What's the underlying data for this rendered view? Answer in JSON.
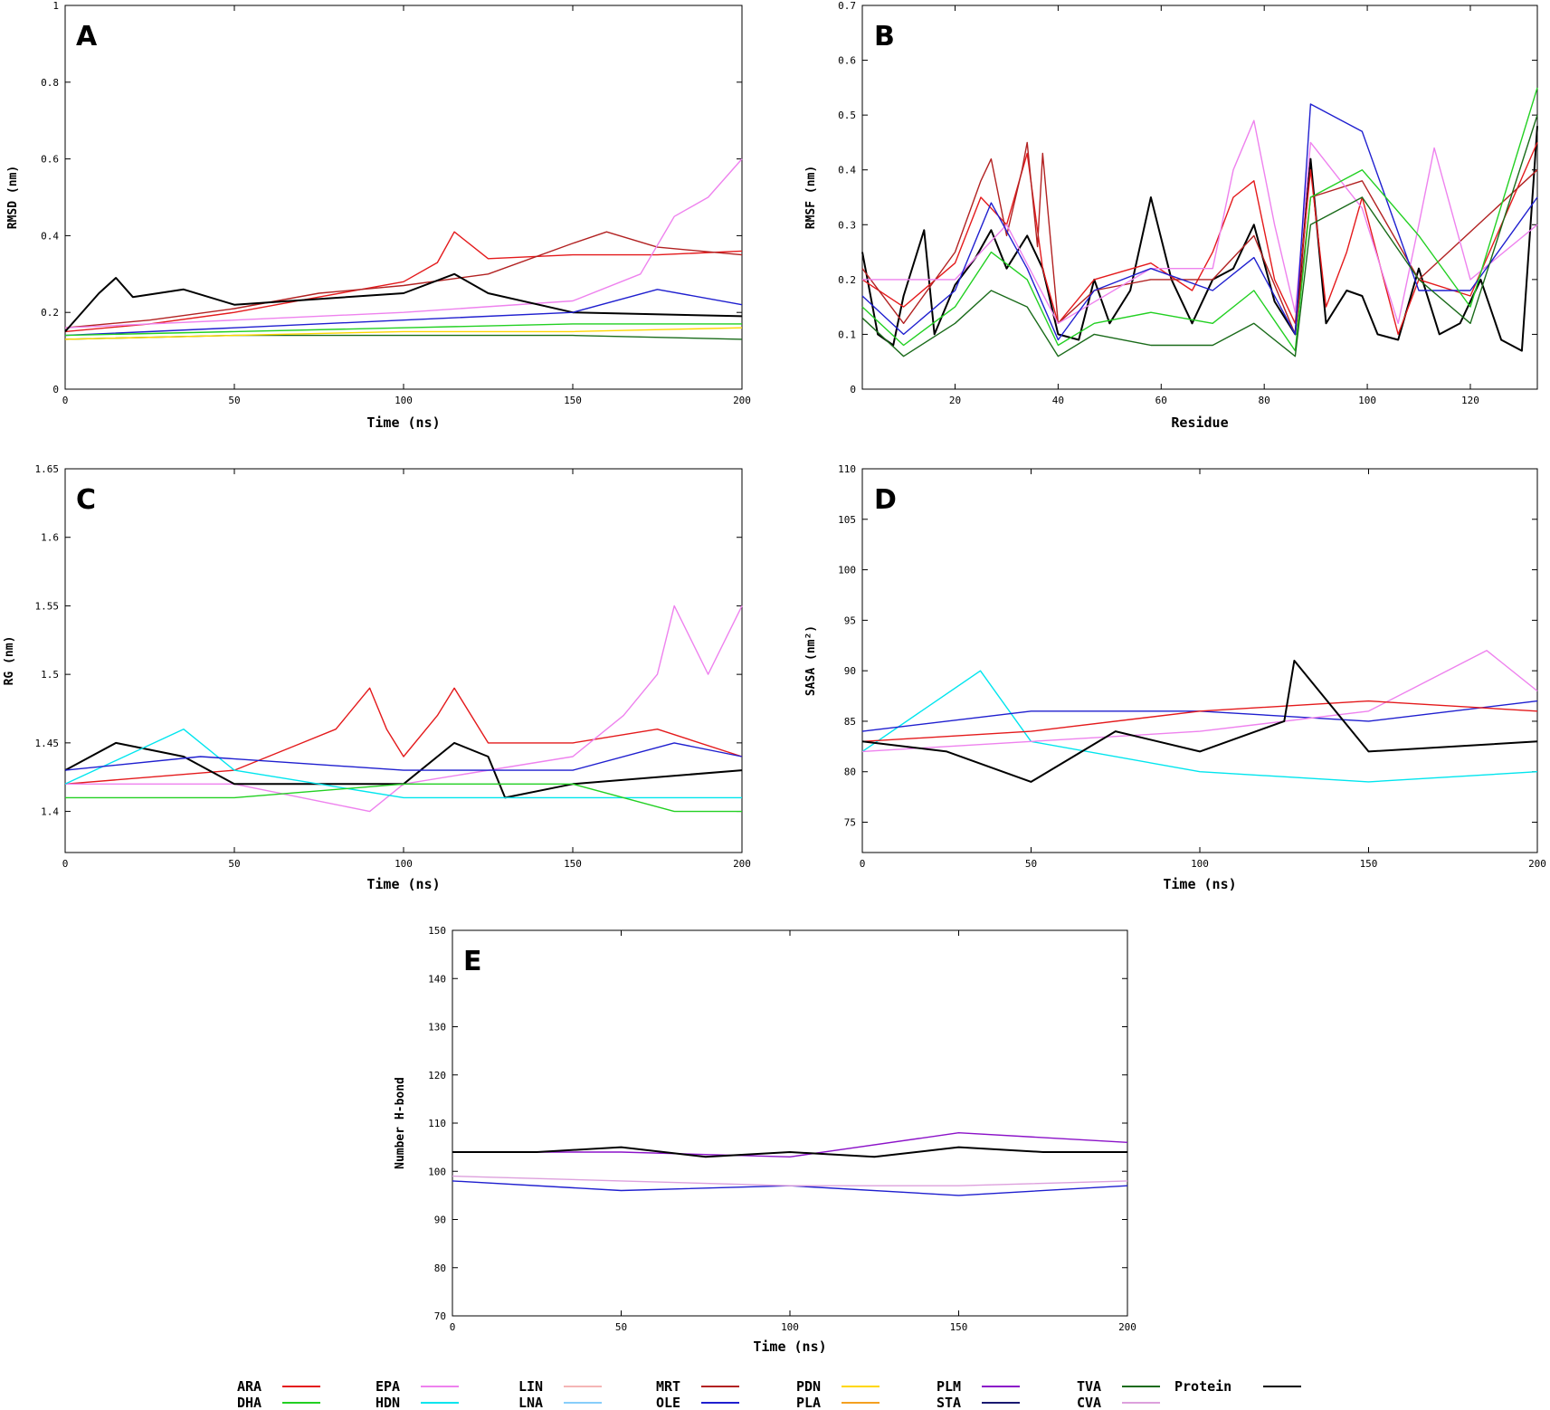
{
  "legend": [
    {
      "name": "ARA",
      "color": "#e41a1c"
    },
    {
      "name": "DHA",
      "color": "#22d022"
    },
    {
      "name": "EPA",
      "color": "#ee82ee"
    },
    {
      "name": "HDN",
      "color": "#00e5ee"
    },
    {
      "name": "LIN",
      "color": "#f4b6b6"
    },
    {
      "name": "LNA",
      "color": "#87cefa"
    },
    {
      "name": "MRT",
      "color": "#b22222"
    },
    {
      "name": "OLE",
      "color": "#1f1fcf"
    },
    {
      "name": "PDN",
      "color": "#ffd700"
    },
    {
      "name": "PLA",
      "color": "#f4a020"
    },
    {
      "name": "PLM",
      "color": "#8b12c8"
    },
    {
      "name": "STA",
      "color": "#191970"
    },
    {
      "name": "TVA",
      "color": "#1a6b1a"
    },
    {
      "name": "CVA",
      "color": "#dda0dd"
    },
    {
      "name": "Protein",
      "color": "#000000"
    }
  ],
  "chart_data": [
    {
      "panel": "A",
      "type": "line",
      "xlabel": "Time (ns)",
      "ylabel": "RMSD (nm)",
      "xlim": [
        0,
        200
      ],
      "ylim": [
        0,
        1
      ],
      "xticks": [
        "0",
        "50",
        "100",
        "150",
        "200"
      ],
      "yticks": [
        "0",
        "0.2",
        "0.4",
        "0.6",
        "0.8",
        "1"
      ],
      "series": [
        {
          "name": "ARA",
          "x": [
            0,
            25,
            50,
            75,
            100,
            110,
            115,
            125,
            150,
            175,
            200
          ],
          "y": [
            0.15,
            0.17,
            0.2,
            0.24,
            0.28,
            0.33,
            0.41,
            0.34,
            0.35,
            0.35,
            0.36
          ]
        },
        {
          "name": "MRT",
          "x": [
            0,
            25,
            50,
            75,
            100,
            125,
            150,
            160,
            175,
            200
          ],
          "y": [
            0.16,
            0.18,
            0.21,
            0.25,
            0.27,
            0.3,
            0.38,
            0.41,
            0.37,
            0.35
          ]
        },
        {
          "name": "EPA",
          "x": [
            0,
            50,
            100,
            150,
            170,
            180,
            190,
            200
          ],
          "y": [
            0.16,
            0.18,
            0.2,
            0.23,
            0.3,
            0.45,
            0.5,
            0.6
          ]
        },
        {
          "name": "Protein",
          "x": [
            0,
            10,
            15,
            20,
            35,
            50,
            100,
            115,
            125,
            150,
            200
          ],
          "y": [
            0.15,
            0.25,
            0.29,
            0.24,
            0.26,
            0.22,
            0.25,
            0.3,
            0.25,
            0.2,
            0.19
          ]
        },
        {
          "name": "OLE",
          "x": [
            0,
            50,
            100,
            150,
            175,
            200
          ],
          "y": [
            0.14,
            0.16,
            0.18,
            0.2,
            0.26,
            0.22
          ]
        },
        {
          "name": "DHA",
          "x": [
            0,
            50,
            100,
            150,
            200
          ],
          "y": [
            0.14,
            0.15,
            0.16,
            0.17,
            0.17
          ]
        },
        {
          "name": "TVA",
          "x": [
            0,
            50,
            100,
            150,
            200
          ],
          "y": [
            0.13,
            0.14,
            0.14,
            0.14,
            0.13
          ]
        },
        {
          "name": "PDN",
          "x": [
            0,
            50,
            100,
            150,
            200
          ],
          "y": [
            0.13,
            0.14,
            0.15,
            0.15,
            0.16
          ]
        }
      ]
    },
    {
      "panel": "B",
      "type": "line",
      "xlabel": "Residue",
      "ylabel": "RMSF (nm)",
      "xlim": [
        2,
        133
      ],
      "ylim": [
        0,
        0.7
      ],
      "xticks": [
        "20",
        "40",
        "60",
        "80",
        "100",
        "120"
      ],
      "yticks": [
        "0",
        "0.1",
        "0.2",
        "0.3",
        "0.4",
        "0.5",
        "0.6",
        "0.7"
      ],
      "series": [
        {
          "name": "Protein",
          "x": [
            2,
            5,
            8,
            10,
            14,
            16,
            20,
            24,
            27,
            30,
            34,
            37,
            40,
            44,
            47,
            50,
            54,
            58,
            62,
            66,
            70,
            74,
            78,
            82,
            86,
            89,
            92,
            96,
            99,
            102,
            106,
            110,
            114,
            118,
            122,
            126,
            130,
            133
          ],
          "y": [
            0.25,
            0.1,
            0.08,
            0.17,
            0.29,
            0.1,
            0.19,
            0.24,
            0.29,
            0.22,
            0.28,
            0.22,
            0.1,
            0.09,
            0.2,
            0.12,
            0.18,
            0.35,
            0.2,
            0.12,
            0.2,
            0.22,
            0.3,
            0.16,
            0.1,
            0.42,
            0.12,
            0.18,
            0.17,
            0.1,
            0.09,
            0.22,
            0.1,
            0.12,
            0.2,
            0.09,
            0.07,
            0.48
          ]
        },
        {
          "name": "ARA",
          "x": [
            2,
            10,
            20,
            25,
            30,
            34,
            37,
            40,
            47,
            58,
            66,
            70,
            74,
            78,
            82,
            86,
            89,
            92,
            96,
            99,
            106,
            110,
            120,
            133
          ],
          "y": [
            0.2,
            0.15,
            0.23,
            0.35,
            0.3,
            0.43,
            0.22,
            0.12,
            0.2,
            0.23,
            0.18,
            0.25,
            0.35,
            0.38,
            0.2,
            0.12,
            0.4,
            0.15,
            0.25,
            0.35,
            0.1,
            0.2,
            0.17,
            0.45
          ]
        },
        {
          "name": "MRT",
          "x": [
            2,
            10,
            20,
            25,
            27,
            30,
            33,
            34,
            36,
            37,
            40,
            47,
            58,
            70,
            78,
            86,
            89,
            99,
            110,
            133
          ],
          "y": [
            0.22,
            0.12,
            0.25,
            0.38,
            0.42,
            0.28,
            0.4,
            0.45,
            0.26,
            0.43,
            0.12,
            0.18,
            0.2,
            0.2,
            0.28,
            0.1,
            0.35,
            0.38,
            0.2,
            0.4
          ]
        },
        {
          "name": "EPA",
          "x": [
            2,
            20,
            30,
            40,
            58,
            70,
            74,
            78,
            82,
            86,
            89,
            99,
            106,
            110,
            113,
            120,
            133
          ],
          "y": [
            0.2,
            0.2,
            0.3,
            0.12,
            0.22,
            0.22,
            0.4,
            0.49,
            0.3,
            0.14,
            0.45,
            0.33,
            0.12,
            0.3,
            0.44,
            0.2,
            0.3
          ]
        },
        {
          "name": "OLE",
          "x": [
            2,
            10,
            20,
            27,
            34,
            40,
            47,
            58,
            70,
            78,
            86,
            89,
            99,
            110,
            120,
            133
          ],
          "y": [
            0.17,
            0.1,
            0.18,
            0.34,
            0.22,
            0.09,
            0.18,
            0.22,
            0.18,
            0.24,
            0.1,
            0.52,
            0.47,
            0.18,
            0.18,
            0.35
          ]
        },
        {
          "name": "DHA",
          "x": [
            2,
            10,
            20,
            27,
            34,
            40,
            47,
            58,
            70,
            78,
            86,
            89,
            99,
            110,
            120,
            133
          ],
          "y": [
            0.15,
            0.08,
            0.15,
            0.25,
            0.2,
            0.08,
            0.12,
            0.14,
            0.12,
            0.18,
            0.07,
            0.35,
            0.4,
            0.28,
            0.15,
            0.55
          ]
        },
        {
          "name": "TVA",
          "x": [
            2,
            10,
            20,
            27,
            34,
            40,
            47,
            58,
            70,
            78,
            86,
            89,
            99,
            110,
            120,
            133
          ],
          "y": [
            0.13,
            0.06,
            0.12,
            0.18,
            0.15,
            0.06,
            0.1,
            0.08,
            0.08,
            0.12,
            0.06,
            0.3,
            0.35,
            0.2,
            0.12,
            0.5
          ]
        }
      ]
    },
    {
      "panel": "C",
      "type": "line",
      "xlabel": "Time (ns)",
      "ylabel": "RG (nm)",
      "xlim": [
        0,
        200
      ],
      "ylim": [
        1.37,
        1.65
      ],
      "xticks": [
        "0",
        "50",
        "100",
        "150",
        "200"
      ],
      "yticks": [
        "1.4",
        "1.45",
        "1.5",
        "1.55",
        "1.6",
        "1.65"
      ],
      "series": [
        {
          "name": "ARA",
          "x": [
            0,
            50,
            70,
            80,
            90,
            95,
            100,
            110,
            115,
            125,
            150,
            175,
            200
          ],
          "y": [
            1.42,
            1.43,
            1.45,
            1.46,
            1.49,
            1.46,
            1.44,
            1.47,
            1.49,
            1.45,
            1.45,
            1.46,
            1.44
          ]
        },
        {
          "name": "EPA",
          "x": [
            0,
            50,
            90,
            100,
            150,
            165,
            175,
            180,
            190,
            200
          ],
          "y": [
            1.42,
            1.42,
            1.4,
            1.42,
            1.44,
            1.47,
            1.5,
            1.55,
            1.5,
            1.55
          ]
        },
        {
          "name": "Protein",
          "x": [
            0,
            15,
            35,
            50,
            100,
            115,
            125,
            130,
            150,
            200
          ],
          "y": [
            1.43,
            1.45,
            1.44,
            1.42,
            1.42,
            1.45,
            1.44,
            1.41,
            1.42,
            1.43
          ]
        },
        {
          "name": "HDN",
          "x": [
            0,
            35,
            50,
            100,
            150,
            200
          ],
          "y": [
            1.42,
            1.46,
            1.43,
            1.41,
            1.41,
            1.41
          ]
        },
        {
          "name": "DHA",
          "x": [
            0,
            50,
            100,
            150,
            180,
            200
          ],
          "y": [
            1.41,
            1.41,
            1.42,
            1.42,
            1.4,
            1.4
          ]
        },
        {
          "name": "OLE",
          "x": [
            0,
            40,
            100,
            150,
            180,
            200
          ],
          "y": [
            1.43,
            1.44,
            1.43,
            1.43,
            1.45,
            1.44
          ]
        }
      ]
    },
    {
      "panel": "D",
      "type": "line",
      "xlabel": "Time (ns)",
      "ylabel": "SASA (nm²)",
      "xlim": [
        0,
        200
      ],
      "ylim": [
        72,
        110
      ],
      "xticks": [
        "0",
        "50",
        "100",
        "150",
        "200"
      ],
      "yticks": [
        "75",
        "80",
        "85",
        "90",
        "95",
        "100",
        "105",
        "110"
      ],
      "series": [
        {
          "name": "HDN",
          "x": [
            0,
            35,
            50,
            100,
            150,
            200
          ],
          "y": [
            82,
            90,
            83,
            80,
            79,
            80
          ]
        },
        {
          "name": "OLE",
          "x": [
            0,
            50,
            100,
            150,
            200
          ],
          "y": [
            84,
            86,
            86,
            85,
            87
          ]
        },
        {
          "name": "EPA",
          "x": [
            0,
            50,
            100,
            150,
            185,
            200
          ],
          "y": [
            82,
            83,
            84,
            86,
            92,
            88
          ]
        },
        {
          "name": "ARA",
          "x": [
            0,
            50,
            100,
            150,
            200
          ],
          "y": [
            83,
            84,
            86,
            87,
            86
          ]
        },
        {
          "name": "Protein",
          "x": [
            0,
            25,
            50,
            75,
            100,
            125,
            128,
            150,
            200
          ],
          "y": [
            83,
            82,
            79,
            84,
            82,
            85,
            91,
            82,
            83
          ]
        }
      ]
    },
    {
      "panel": "E",
      "type": "line",
      "xlabel": "Time (ns)",
      "ylabel": "Number H-bond",
      "xlim": [
        0,
        200
      ],
      "ylim": [
        70,
        150
      ],
      "xticks": [
        "0",
        "50",
        "100",
        "150",
        "200"
      ],
      "yticks": [
        "70",
        "80",
        "90",
        "100",
        "110",
        "120",
        "130",
        "140",
        "150"
      ],
      "series": [
        {
          "name": "PLM",
          "x": [
            0,
            50,
            100,
            150,
            200
          ],
          "y": [
            104,
            104,
            103,
            108,
            106
          ]
        },
        {
          "name": "OLE",
          "x": [
            0,
            50,
            100,
            150,
            200
          ],
          "y": [
            98,
            96,
            97,
            95,
            97
          ]
        },
        {
          "name": "CVA",
          "x": [
            0,
            50,
            100,
            150,
            200
          ],
          "y": [
            99,
            98,
            97,
            97,
            98
          ]
        },
        {
          "name": "Protein",
          "x": [
            0,
            25,
            50,
            75,
            100,
            125,
            150,
            175,
            200
          ],
          "y": [
            104,
            104,
            105,
            103,
            104,
            103,
            105,
            104,
            104
          ]
        }
      ]
    }
  ]
}
